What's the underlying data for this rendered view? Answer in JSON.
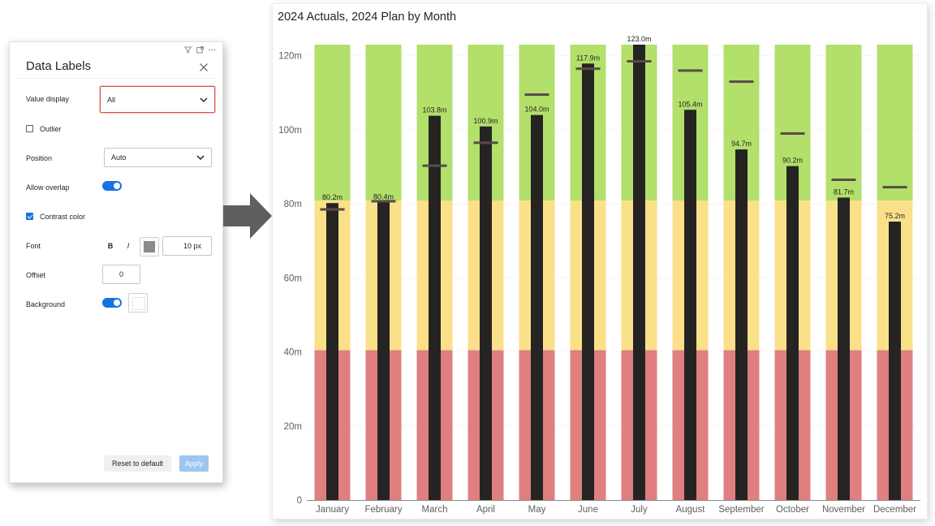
{
  "panel": {
    "title": "Data Labels",
    "icons": [
      "filter-icon",
      "expand-icon",
      "more-icon"
    ],
    "value_display": {
      "label": "Value display",
      "selected": "All"
    },
    "outlier": {
      "label": "Outlier",
      "checked": false
    },
    "position": {
      "label": "Position",
      "selected": "Auto"
    },
    "allow_overlap": {
      "label": "Allow overlap",
      "on": true
    },
    "contrast_color": {
      "label": "Contrast color",
      "checked": true
    },
    "font": {
      "label": "Font",
      "bold": "B",
      "italic": "I",
      "size": "10",
      "unit": "px",
      "color": "#8a8a8a"
    },
    "offset": {
      "label": "Offset",
      "value": "0"
    },
    "background": {
      "label": "Background",
      "on": true
    },
    "reset_label": "Reset to default",
    "apply_label": "Apply"
  },
  "chart_data": {
    "type": "bar",
    "title": "2024 Actuals, 2024 Plan by Month",
    "categories": [
      "January",
      "February",
      "March",
      "April",
      "May",
      "June",
      "July",
      "August",
      "September",
      "October",
      "November",
      "December"
    ],
    "series": [
      {
        "name": "2024 Actuals",
        "values": [
          80.2,
          80.4,
          103.8,
          100.9,
          104.0,
          117.9,
          123.0,
          105.4,
          94.7,
          90.2,
          81.7,
          75.2
        ],
        "color": "#252423"
      },
      {
        "name": "2024 Plan",
        "values": [
          78.5,
          80.7,
          90.3,
          96.5,
          109.5,
          116.5,
          118.5,
          116.0,
          113.0,
          99.0,
          86.5,
          84.5
        ],
        "color": "#5a4a4a"
      }
    ],
    "data_labels": [
      "80.2m",
      "80.4m",
      "103.8m",
      "100.9m",
      "104.0m",
      "117.9m",
      "123.0m",
      "105.4m",
      "94.7m",
      "90.2m",
      "81.7m",
      "75.2m"
    ],
    "bands": [
      {
        "from": 0,
        "to": 40.5,
        "color": "#df7f7f"
      },
      {
        "from": 40.5,
        "to": 80.9,
        "color": "#fbe08a"
      },
      {
        "from": 80.9,
        "to": 123,
        "color": "#b2e06a"
      }
    ],
    "yticks": [
      0,
      20,
      40,
      60,
      80,
      100,
      120
    ],
    "ytick_labels": [
      "0",
      "20m",
      "40m",
      "60m",
      "80m",
      "100m",
      "120m"
    ],
    "ylim": [
      0,
      123
    ],
    "grid": true,
    "xlabel": "",
    "ylabel": ""
  }
}
